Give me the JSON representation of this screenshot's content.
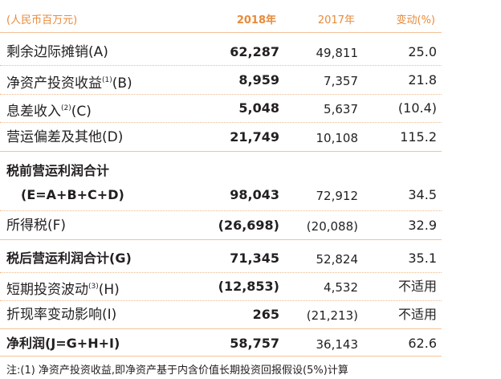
{
  "header": {
    "unit": "(人民币百万元)",
    "col_2018": "2018年",
    "col_2017": "2017年",
    "col_change": "变动(%)"
  },
  "rows": [
    {
      "label": "剩余边际摊销(A)",
      "v2018": "62,287",
      "v2017": "49,811",
      "change": "25.0"
    },
    {
      "label_pre": "净资产投资收益",
      "label_sup": "(1)",
      "label_post": "(B)",
      "v2018": "8,959",
      "v2017": "7,357",
      "change": "21.8"
    },
    {
      "label_pre": "息差收入",
      "label_sup": "(2)",
      "label_post": "(C)",
      "v2018": "5,048",
      "v2017": "5,637",
      "change": "(10.4)"
    },
    {
      "label": "营运偏差及其他(D)",
      "v2018": "21,749",
      "v2017": "10,108",
      "change": "115.2"
    },
    {
      "label": "税前营运利润合计"
    },
    {
      "label": "(E=A+B+C+D)",
      "v2018": "98,043",
      "v2017": "72,912",
      "change": "34.5"
    },
    {
      "label": "所得税(F)",
      "v2018": "(26,698)",
      "v2017": "(20,088)",
      "change": "32.9"
    },
    {
      "label": "税后营运利润合计(G)",
      "v2018": "71,345",
      "v2017": "52,824",
      "change": "35.1"
    },
    {
      "label_pre": "短期投资波动",
      "label_sup": "(3)",
      "label_post": "(H)",
      "v2018": "(12,853)",
      "v2017": "4,532",
      "change": "不适用"
    },
    {
      "label": "折现率变动影响(I)",
      "v2018": "265",
      "v2017": "(21,213)",
      "change": "不适用"
    },
    {
      "label": "净利润(J=G+H+I)",
      "v2018": "58,757",
      "v2017": "36,143",
      "change": "62.6"
    }
  ],
  "footnote": "注:(1) 净资产投资收益,即净资产基于内含价值长期投资回报假设(5%)计算"
}
